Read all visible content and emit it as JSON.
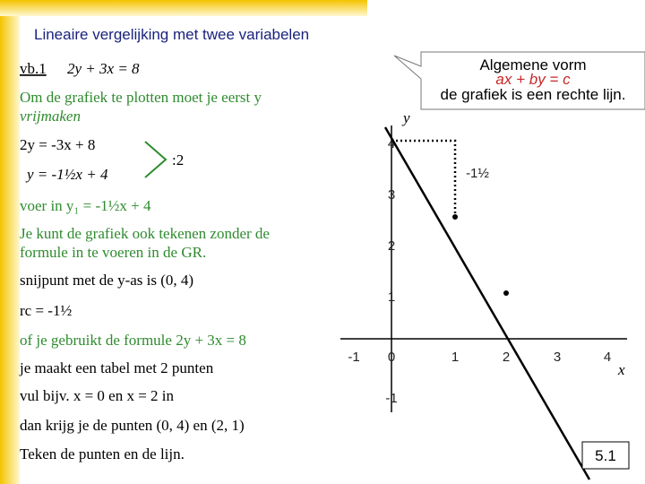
{
  "header": {
    "title": "Lineaire vergelijking met twee variabelen"
  },
  "body": {
    "example_label": "vb.1",
    "example_equation": "2y + 3x = 8",
    "lines": [
      "Om de grafiek te plotten moet je eerst y",
      "vrijmaken",
      "2y = -3x + 8",
      "y = -1½x + 4",
      ":2",
      "voer in  y₁ = -1½x + 4",
      "Je kunt de grafiek ook tekenen zonder de",
      "formule in te voeren in de GR.",
      "snijpunt met de y-as is  (0, 4)",
      "rc = -1½",
      "of je gebruikt de formule 2y + 3x = 8",
      "je maakt een tabel met 2 punten",
      "vul bijv.  x = 0  en  x = 2  in",
      "dan krijg je de punten (0, 4)  en  (2, 1)",
      "Teken de punten en de lijn."
    ]
  },
  "callout": {
    "lines": [
      "Algemene vorm",
      "ax + by = c",
      "de grafiek is een rechte lijn."
    ]
  },
  "graph": {
    "y_label": "y",
    "x_label": "x",
    "x_tick_labels": [
      "-1",
      "0",
      "1",
      "2",
      "3",
      "4"
    ],
    "y_tick_labels": [
      "4",
      "3",
      "2",
      "1",
      "-1"
    ],
    "slope_label": "-1½"
  },
  "footer": {
    "page": "5.1"
  }
}
